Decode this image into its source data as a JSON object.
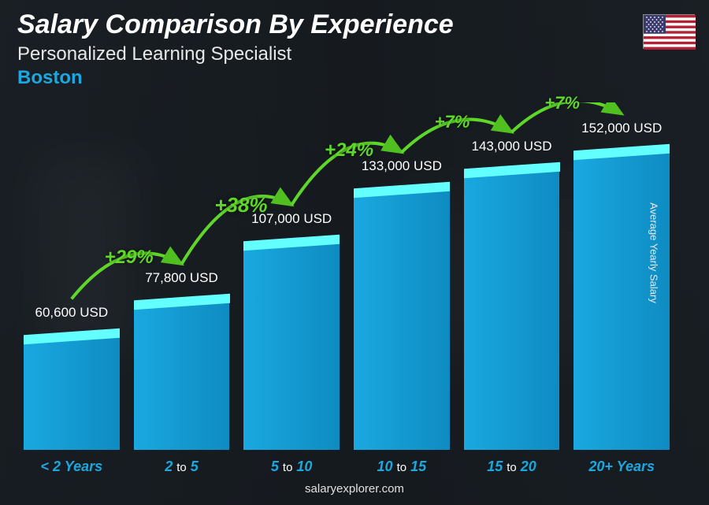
{
  "header": {
    "title": "Salary Comparison By Experience",
    "subtitle": "Personalized Learning Specialist",
    "location": "Boston",
    "location_color": "#1ba8e0"
  },
  "y_axis_label": "Average Yearly Salary",
  "footer": "salaryexplorer.com",
  "chart": {
    "type": "bar",
    "max_value": 160000,
    "bar_fill": "#1aa8e0",
    "bar_top_fill": "#4cc5f0",
    "value_color": "#ffffff",
    "value_fontsize": 17,
    "category_color": "#1ba8e0",
    "category_fontsize": 18,
    "bars": [
      {
        "category_html": "< 2 Years",
        "value": 60600,
        "value_label": "60,600 USD"
      },
      {
        "category_html": "2 <span class='to'>to</span> 5",
        "value": 77800,
        "value_label": "77,800 USD"
      },
      {
        "category_html": "5 <span class='to'>to</span> 10",
        "value": 107000,
        "value_label": "107,000 USD"
      },
      {
        "category_html": "10 <span class='to'>to</span> 15",
        "value": 133000,
        "value_label": "133,000 USD"
      },
      {
        "category_html": "15 <span class='to'>to</span> 20",
        "value": 143000,
        "value_label": "143,000 USD"
      },
      {
        "category_html": "20+ Years",
        "value": 152000,
        "value_label": "152,000 USD"
      }
    ],
    "growth_arrows": [
      {
        "label": "+29%",
        "color": "#5fd62a",
        "fontsize": 24
      },
      {
        "label": "+38%",
        "color": "#5fd62a",
        "fontsize": 26
      },
      {
        "label": "+24%",
        "color": "#5fd62a",
        "fontsize": 24
      },
      {
        "label": "+7%",
        "color": "#5fd62a",
        "fontsize": 22
      },
      {
        "label": "+7%",
        "color": "#5fd62a",
        "fontsize": 22
      }
    ]
  },
  "flag": {
    "country": "United States",
    "stripe_red": "#b22234",
    "stripe_white": "#ffffff",
    "canton_blue": "#3c3b6e"
  }
}
